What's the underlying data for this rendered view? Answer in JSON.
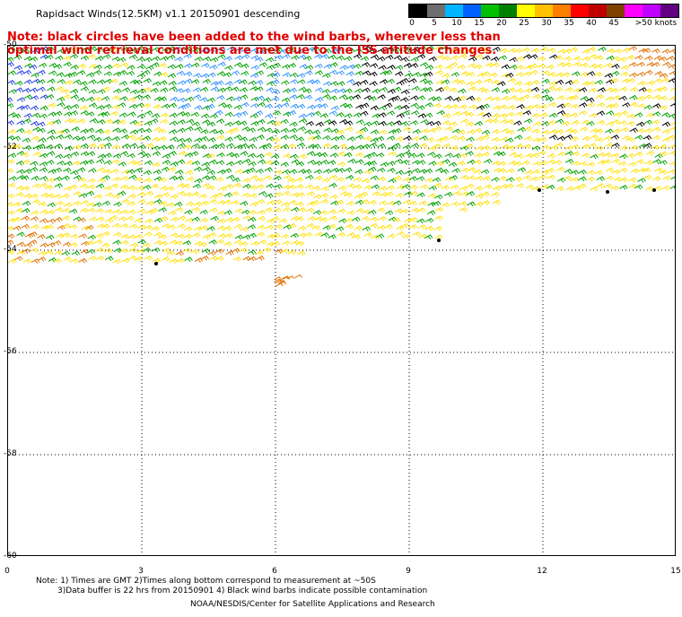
{
  "title": "Rapidsact Winds(12.5KM)  v1.1  20150901  descending",
  "note": "Note: black circles have been added to the wind barbs, wherever less than optimal wind retrieval conditions are met due to the ISS altitude changes.",
  "colorbar": {
    "colors": [
      "#000000",
      "#6e6e6e",
      "#00b4ff",
      "#0060ff",
      "#00c000",
      "#008000",
      "#ffff00",
      "#ffc000",
      "#ff8000",
      "#ff0000",
      "#c00000",
      "#804000",
      "#ff00ff",
      "#c000ff",
      "#600080"
    ],
    "labels": [
      "0",
      "5",
      "10",
      "15",
      "20",
      "25",
      "30",
      "35",
      "40",
      "45",
      ">50 knots"
    ]
  },
  "axes": {
    "y_ticks": [
      "-50",
      "-52",
      "-54",
      "-56",
      "-58",
      "-60"
    ],
    "x_ticks": [
      "0",
      "3",
      "6",
      "9",
      "12",
      "15"
    ],
    "ylim": [
      -60,
      -50
    ],
    "xlim": [
      0,
      15
    ]
  },
  "footer": {
    "line1": "Note: 1) Times are GMT  2)Times along bottom correspond to measurement at ~50S",
    "line2": "3)Data buffer is 22 hrs from 20150901  4) Black wind barbs indicate possible contamination",
    "line3": "NOAA/NESDIS/Center for Satellite Applications and Research"
  },
  "barb_palette": {
    "blue": "#2040e0",
    "lightblue": "#3090ff",
    "green": "#00a000",
    "yellow": "#ffe000",
    "orange": "#e07000",
    "black": "#000000"
  }
}
